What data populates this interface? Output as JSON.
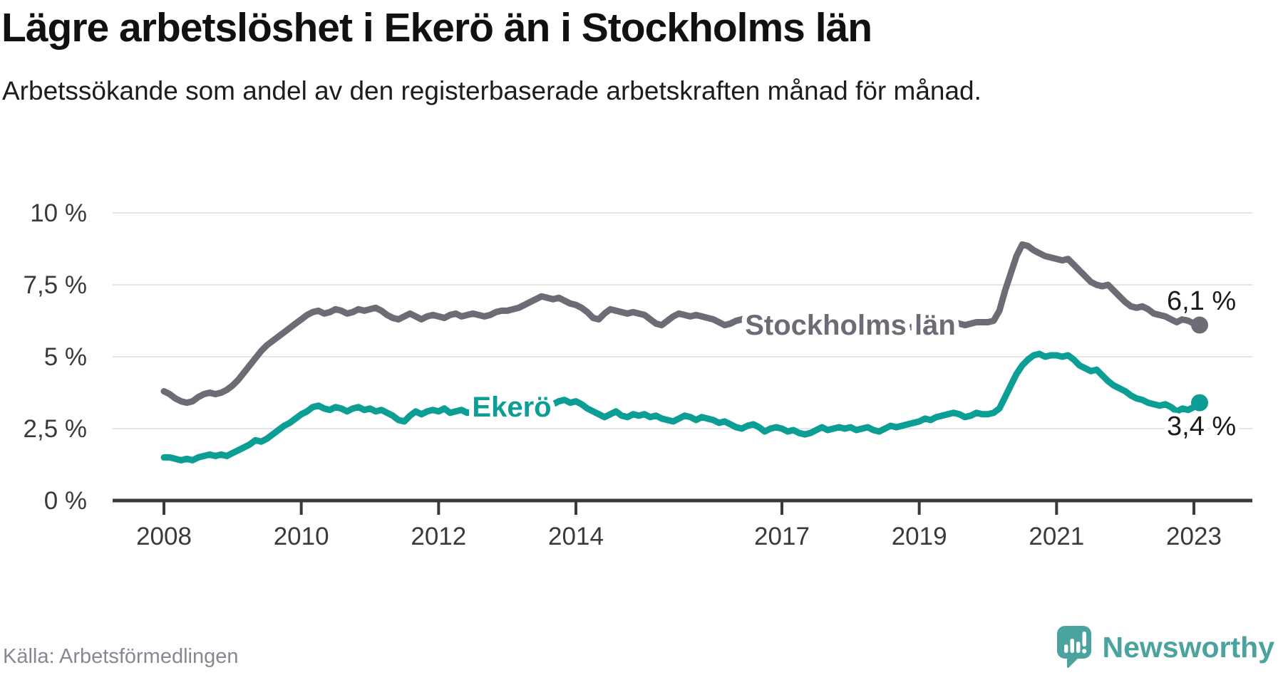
{
  "header": {
    "title": "Lägre arbetslöshet i Ekerö än i Stockholms län",
    "subtitle": "Arbetssökande som andel av den registerbaserade arbetskraften månad för månad."
  },
  "chart_data": {
    "type": "line",
    "title": "Lägre arbetslöshet i Ekerö än i Stockholms län",
    "subtitle": "Arbetssökande som andel av den registerbaserade arbetskraften månad för månad.",
    "grid": "horizontal",
    "legend": "inline-labels",
    "x_axis": {
      "ticks": [
        2008,
        2010,
        2012,
        2014,
        2017,
        2019,
        2021,
        2023
      ],
      "range": [
        2007.25,
        2023.85
      ],
      "unit": "year"
    },
    "y_axis": {
      "ticks": [
        0,
        2.5,
        5,
        7.5,
        10
      ],
      "tick_labels": [
        "0 %",
        "2,5 %",
        "5 %",
        "7,5 %",
        "10 %"
      ],
      "range": [
        0,
        10
      ],
      "unit": "%"
    },
    "x_start": 2008.0,
    "x_step_months": 1,
    "series": [
      {
        "name": "Stockholms län",
        "color": "#6e6a76",
        "end_label": "6,1 %",
        "end_value": 6.1,
        "values": [
          3.8,
          3.7,
          3.55,
          3.45,
          3.4,
          3.45,
          3.6,
          3.7,
          3.75,
          3.7,
          3.75,
          3.85,
          4.0,
          4.2,
          4.45,
          4.7,
          4.95,
          5.2,
          5.4,
          5.55,
          5.7,
          5.85,
          6.0,
          6.15,
          6.3,
          6.45,
          6.55,
          6.6,
          6.5,
          6.55,
          6.65,
          6.6,
          6.5,
          6.55,
          6.65,
          6.6,
          6.65,
          6.7,
          6.6,
          6.45,
          6.35,
          6.3,
          6.4,
          6.5,
          6.4,
          6.3,
          6.4,
          6.45,
          6.4,
          6.35,
          6.45,
          6.5,
          6.4,
          6.45,
          6.5,
          6.45,
          6.4,
          6.45,
          6.55,
          6.6,
          6.6,
          6.65,
          6.7,
          6.8,
          6.9,
          7.0,
          7.1,
          7.05,
          7.0,
          7.05,
          6.95,
          6.85,
          6.8,
          6.7,
          6.55,
          6.35,
          6.3,
          6.5,
          6.65,
          6.6,
          6.55,
          6.5,
          6.55,
          6.5,
          6.45,
          6.3,
          6.15,
          6.1,
          6.25,
          6.4,
          6.5,
          6.45,
          6.4,
          6.45,
          6.4,
          6.35,
          6.3,
          6.2,
          6.1,
          6.15,
          6.25,
          6.3,
          6.35,
          6.3,
          6.2,
          6.1,
          6.05,
          6.0,
          6.0,
          6.05,
          6.0,
          5.95,
          6.0,
          6.05,
          6.1,
          6.05,
          6.0,
          5.95,
          6.0,
          6.05,
          6.0,
          5.95,
          5.9,
          5.95,
          6.0,
          5.95,
          6.0,
          6.05,
          6.0,
          5.95,
          6.0,
          6.05,
          6.05,
          6.1,
          6.1,
          6.05,
          6.1,
          6.15,
          6.2,
          6.15,
          6.1,
          6.15,
          6.2,
          6.2,
          6.2,
          6.25,
          6.6,
          7.3,
          7.9,
          8.5,
          8.9,
          8.85,
          8.7,
          8.6,
          8.5,
          8.45,
          8.4,
          8.35,
          8.4,
          8.2,
          8.0,
          7.8,
          7.6,
          7.5,
          7.45,
          7.5,
          7.3,
          7.1,
          6.9,
          6.75,
          6.7,
          6.75,
          6.65,
          6.5,
          6.45,
          6.4,
          6.3,
          6.2,
          6.3,
          6.25,
          6.15,
          6.1
        ]
      },
      {
        "name": "Ekerö",
        "color": "#0a9e94",
        "end_label": "3,4 %",
        "end_value": 3.4,
        "values": [
          1.5,
          1.5,
          1.45,
          1.4,
          1.45,
          1.4,
          1.5,
          1.55,
          1.6,
          1.55,
          1.6,
          1.55,
          1.65,
          1.75,
          1.85,
          1.95,
          2.1,
          2.05,
          2.15,
          2.3,
          2.45,
          2.6,
          2.7,
          2.85,
          3.0,
          3.1,
          3.25,
          3.3,
          3.2,
          3.15,
          3.25,
          3.2,
          3.1,
          3.2,
          3.25,
          3.15,
          3.2,
          3.1,
          3.15,
          3.05,
          2.95,
          2.8,
          2.75,
          2.95,
          3.1,
          3.0,
          3.1,
          3.15,
          3.1,
          3.2,
          3.05,
          3.1,
          3.15,
          3.05,
          3.1,
          3.2,
          3.1,
          3.05,
          3.15,
          3.1,
          3.15,
          3.2,
          3.25,
          3.2,
          3.3,
          3.25,
          3.35,
          3.4,
          3.35,
          3.45,
          3.5,
          3.4,
          3.45,
          3.35,
          3.2,
          3.1,
          3.0,
          2.9,
          3.0,
          3.1,
          2.95,
          2.9,
          3.0,
          2.95,
          3.0,
          2.9,
          2.95,
          2.85,
          2.8,
          2.75,
          2.85,
          2.95,
          2.9,
          2.8,
          2.9,
          2.85,
          2.8,
          2.7,
          2.75,
          2.65,
          2.55,
          2.5,
          2.6,
          2.65,
          2.55,
          2.4,
          2.5,
          2.55,
          2.5,
          2.4,
          2.45,
          2.35,
          2.3,
          2.35,
          2.45,
          2.55,
          2.45,
          2.5,
          2.55,
          2.5,
          2.55,
          2.45,
          2.5,
          2.55,
          2.45,
          2.4,
          2.5,
          2.6,
          2.55,
          2.6,
          2.65,
          2.7,
          2.75,
          2.85,
          2.8,
          2.9,
          2.95,
          3.0,
          3.05,
          3.0,
          2.9,
          2.95,
          3.05,
          3.0,
          3.0,
          3.05,
          3.2,
          3.6,
          4.0,
          4.4,
          4.7,
          4.9,
          5.05,
          5.1,
          5.0,
          5.05,
          5.05,
          5.0,
          5.05,
          4.9,
          4.7,
          4.6,
          4.5,
          4.55,
          4.35,
          4.15,
          4.0,
          3.9,
          3.8,
          3.65,
          3.55,
          3.5,
          3.4,
          3.35,
          3.3,
          3.35,
          3.25,
          3.1,
          3.2,
          3.15,
          3.25,
          3.4
        ]
      }
    ]
  },
  "colors": {
    "series_stockholm": "#6e6a76",
    "series_ekero": "#0a9e94",
    "grid": "#e5e5e5",
    "axis": "#3a3a3a",
    "text_dark": "#1a1a1a",
    "source_text": "#8a8791",
    "logo": "#4ba3a0"
  },
  "footer": {
    "source": "Källa: Arbetsförmedlingen",
    "logo_text": "Newsworthy"
  }
}
